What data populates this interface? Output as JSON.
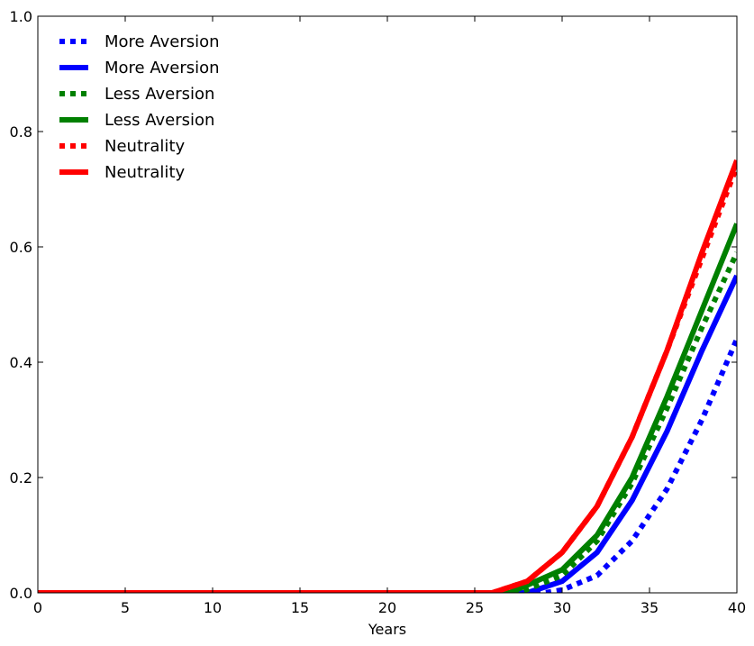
{
  "chart_data": {
    "type": "line",
    "xlabel": "Years",
    "ylabel": "",
    "xlim": [
      0,
      40
    ],
    "ylim": [
      0.0,
      1.0
    ],
    "xticks": [
      "0",
      "5",
      "10",
      "15",
      "20",
      "25",
      "30",
      "35",
      "40"
    ],
    "yticks": [
      "0.0",
      "0.2",
      "0.4",
      "0.6",
      "0.8",
      "1.0"
    ],
    "grid": false,
    "legend_position": "top-left",
    "series": [
      {
        "name": "More Aversion",
        "color": "#0000ff",
        "style": "dotted",
        "x": [
          0,
          25,
          29,
          30,
          32,
          34,
          36,
          38,
          40
        ],
        "y": [
          0,
          0,
          0,
          0.005,
          0.03,
          0.09,
          0.18,
          0.3,
          0.44
        ]
      },
      {
        "name": "More Aversion",
        "color": "#0000ff",
        "style": "solid",
        "x": [
          0,
          25,
          28,
          30,
          32,
          34,
          36,
          38,
          40
        ],
        "y": [
          0,
          0,
          0,
          0.02,
          0.07,
          0.16,
          0.28,
          0.42,
          0.55
        ]
      },
      {
        "name": "Less Aversion",
        "color": "#008000",
        "style": "dotted",
        "x": [
          0,
          25,
          27.5,
          30,
          32,
          34,
          36,
          38,
          40
        ],
        "y": [
          0,
          0,
          0,
          0.03,
          0.09,
          0.19,
          0.32,
          0.46,
          0.59
        ]
      },
      {
        "name": "Less Aversion",
        "color": "#008000",
        "style": "solid",
        "x": [
          0,
          25,
          27,
          30,
          32,
          34,
          36,
          38,
          40
        ],
        "y": [
          0,
          0,
          0,
          0.04,
          0.1,
          0.2,
          0.34,
          0.49,
          0.64
        ]
      },
      {
        "name": "Neutrality",
        "color": "#ff0000",
        "style": "dotted",
        "x": [
          0,
          25,
          26,
          28,
          30,
          32,
          34,
          36,
          38,
          40
        ],
        "y": [
          0,
          0,
          0,
          0.02,
          0.07,
          0.15,
          0.27,
          0.42,
          0.58,
          0.74
        ]
      },
      {
        "name": "Neutrality",
        "color": "#ff0000",
        "style": "solid",
        "x": [
          0,
          25,
          26,
          28,
          30,
          32,
          34,
          36,
          38,
          40
        ],
        "y": [
          0,
          0,
          0,
          0.02,
          0.07,
          0.15,
          0.27,
          0.42,
          0.59,
          0.75
        ]
      }
    ]
  }
}
